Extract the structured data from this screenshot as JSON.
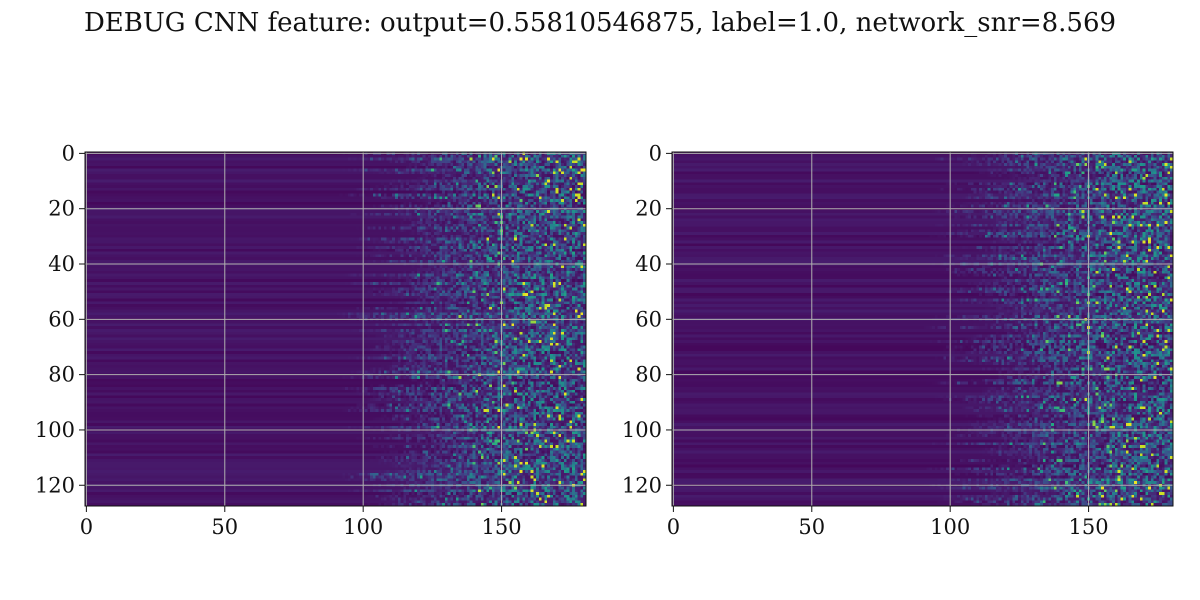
{
  "title": "DEBUG CNN feature: output=0.55810546875, label=1.0, network_snr=8.569",
  "colors": {
    "dark": "#440154",
    "mid": "#31688e",
    "teal": "#21918c",
    "green": "#35b779",
    "yellow": "#fde725",
    "grid": "#b0b0b0"
  },
  "chart_data": [
    {
      "type": "heatmap",
      "colormap": "viridis",
      "grid": true,
      "xlim": [
        0,
        181
      ],
      "ylim": [
        128,
        0
      ],
      "xticks": [
        "0",
        "50",
        "100",
        "150"
      ],
      "yticks": [
        "0",
        "20",
        "40",
        "60",
        "80",
        "100",
        "120"
      ],
      "description_note_free": "",
      "noise_onset_x": 105,
      "dense_onset_x": 135
    },
    {
      "type": "heatmap",
      "colormap": "viridis",
      "grid": true,
      "xlim": [
        0,
        181
      ],
      "ylim": [
        128,
        0
      ],
      "xticks": [
        "0",
        "50",
        "100",
        "150"
      ],
      "yticks": [
        "0",
        "20",
        "40",
        "60",
        "80",
        "100",
        "120"
      ],
      "description_note_free": "",
      "noise_onset_x": 105,
      "dense_onset_x": 140
    }
  ]
}
